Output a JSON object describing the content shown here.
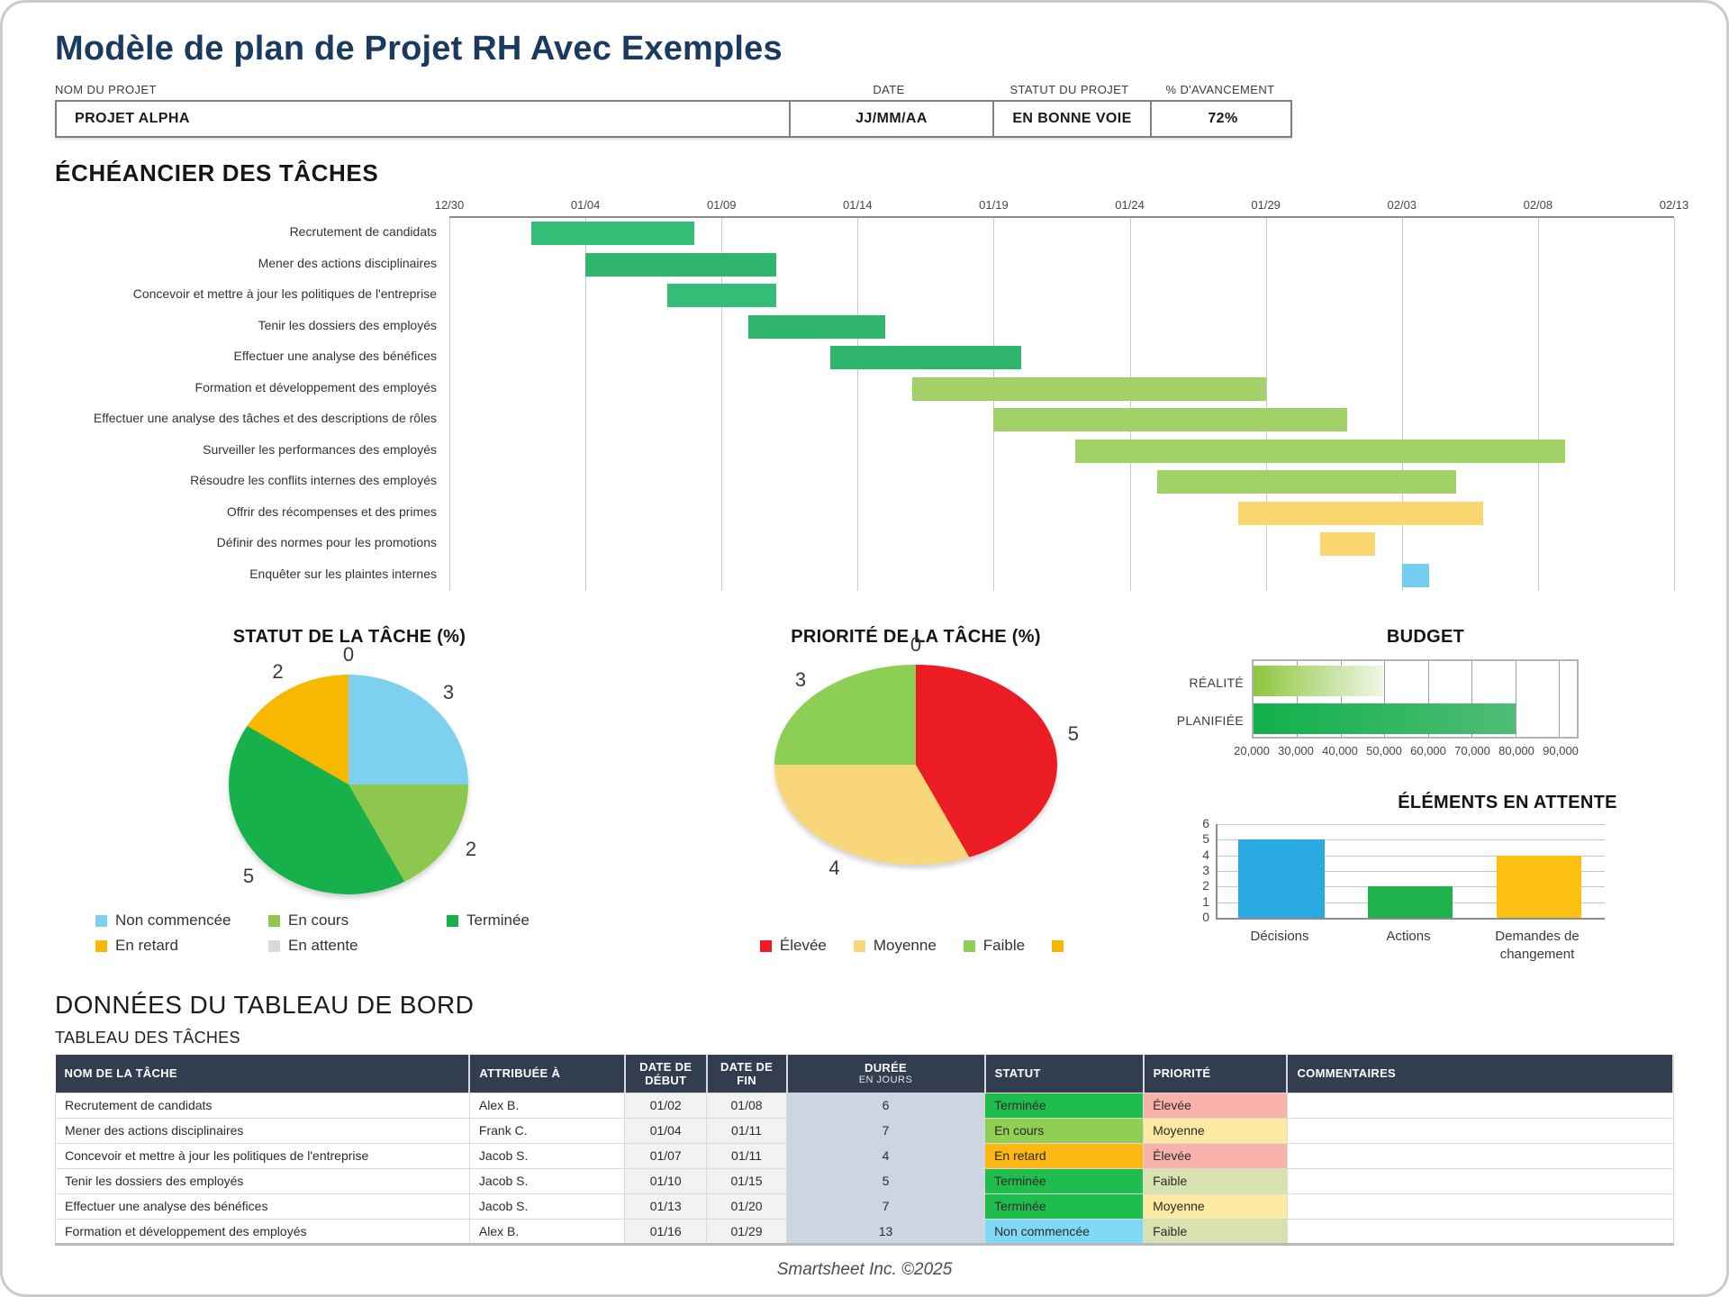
{
  "title": "Modèle de plan de Projet RH Avec Exemples",
  "project_info": {
    "fields": [
      {
        "label": "NOM DU PROJET",
        "value": "PROJET ALPHA"
      },
      {
        "label": "DATE",
        "value": "JJ/MM/AA"
      },
      {
        "label": "STATUT DU PROJET",
        "value": "EN BONNE VOIE"
      },
      {
        "label": "% D'AVANCEMENT",
        "value": "72%"
      }
    ]
  },
  "chart_data": [
    {
      "type": "gantt",
      "title": "ÉCHÉANCIER DES TÂCHES",
      "x_ticks": [
        "12/30",
        "01/04",
        "01/09",
        "01/14",
        "01/19",
        "01/24",
        "01/29",
        "02/03",
        "02/08",
        "02/13"
      ],
      "day_span": 45,
      "tasks": [
        {
          "label": "Recrutement de candidats",
          "start": "01/02",
          "end": "01/08",
          "start_day": 3,
          "end_day": 9,
          "color": "#34bd76"
        },
        {
          "label": "Mener des actions disciplinaires",
          "start": "01/04",
          "end": "01/11",
          "start_day": 5,
          "end_day": 12,
          "color": "#2fb56c"
        },
        {
          "label": "Concevoir et mettre à jour les politiques de l'entreprise",
          "start": "01/07",
          "end": "01/11",
          "start_day": 8,
          "end_day": 12,
          "color": "#34bd76"
        },
        {
          "label": "Tenir les dossiers des employés",
          "start": "01/10",
          "end": "01/15",
          "start_day": 11,
          "end_day": 16,
          "color": "#2fb56c"
        },
        {
          "label": "Effectuer une analyse des bénéfices",
          "start": "01/13",
          "end": "01/20",
          "start_day": 14,
          "end_day": 21,
          "color": "#2fb56c"
        },
        {
          "label": "Formation et développement des employés",
          "start": "01/16",
          "end": "01/29",
          "start_day": 17,
          "end_day": 30,
          "color": "#a2d168"
        },
        {
          "label": "Effectuer une analyse des tâches et des descriptions de rôles",
          "start": "01/19",
          "end": "02/01",
          "start_day": 20,
          "end_day": 33,
          "color": "#a2d168"
        },
        {
          "label": "Surveiller les performances des employés",
          "start": "01/22",
          "end": "02/09",
          "start_day": 23,
          "end_day": 41,
          "color": "#a2d168"
        },
        {
          "label": "Résoudre les conflits internes des employés",
          "start": "01/25",
          "end": "02/05",
          "start_day": 26,
          "end_day": 37,
          "color": "#a2d168"
        },
        {
          "label": "Offrir des récompenses et des primes",
          "start": "01/28",
          "end": "02/06",
          "start_day": 29,
          "end_day": 38,
          "color": "#fbd56f"
        },
        {
          "label": "Définir des normes pour les promotions",
          "start": "01/31",
          "end": "02/02",
          "start_day": 32,
          "end_day": 34,
          "color": "#fbd56f"
        },
        {
          "label": "Enquêter sur les plaintes internes",
          "start": "02/03",
          "end": "02/04",
          "start_day": 35,
          "end_day": 36,
          "color": "#74ccf0"
        }
      ]
    },
    {
      "type": "pie",
      "title": "STATUT DE LA TÂCHE (%)",
      "slices": [
        {
          "label": "Non commencée",
          "value": 3,
          "color": "#7ed1ee"
        },
        {
          "label": "En cours",
          "value": 2,
          "color": "#8dc74e"
        },
        {
          "label": "Terminée",
          "value": 5,
          "color": "#17b14b"
        },
        {
          "label": "En retard",
          "value": 2,
          "color": "#f8b800"
        },
        {
          "label": "En attente",
          "value": 0,
          "color": "#d9d9d9"
        }
      ]
    },
    {
      "type": "pie",
      "title": "PRIORITÉ DE LA TÂCHE (%)",
      "slices": [
        {
          "label": "Élevée",
          "value": 5,
          "color": "#ec1c24"
        },
        {
          "label": "Moyenne",
          "value": 4,
          "color": "#f8d679"
        },
        {
          "label": "Faible",
          "value": 3,
          "color": "#8dce55"
        },
        {
          "label": "",
          "value": 0,
          "color": "#f5b800"
        }
      ]
    },
    {
      "type": "bar",
      "orientation": "horizontal",
      "title": "BUDGET",
      "categories": [
        "RÉALITÉ",
        "PLANIFIÉE"
      ],
      "values": [
        50000,
        80000
      ],
      "bar_gradients": [
        [
          "#8dc63f",
          "#f0f7e6"
        ],
        [
          "#11b04b",
          "#4fbd75"
        ]
      ],
      "axis_min": 20000,
      "axis_max": 90000,
      "x_ticks": [
        "20,000",
        "30,000",
        "40,000",
        "50,000",
        "60,000",
        "70,000",
        "80,000",
        "90,000"
      ]
    },
    {
      "type": "bar",
      "title": "ÉLÉMENTS EN ATTENTE",
      "categories": [
        "Décisions",
        "Actions",
        "Demandes de changement"
      ],
      "values": [
        5,
        2,
        4
      ],
      "colors": [
        "#29abe2",
        "#1fb14c",
        "#fcc013"
      ],
      "y_ticks": [
        6,
        5,
        4,
        3,
        2,
        1,
        0
      ],
      "ylim": [
        0,
        6
      ]
    }
  ],
  "dashboard": {
    "section_title": "DONNÉES DU TABLEAU DE BORD",
    "table_title": "TABLEAU DES TÂCHES",
    "columns": {
      "task": "NOM DE LA TÂCHE",
      "assignee": "ATTRIBUÉE À",
      "start": "DATE DE DÉBUT",
      "end": "DATE DE FIN",
      "duration": "DURÉE",
      "duration_sub": "EN JOURS",
      "status": "STATUT",
      "priority": "PRIORITÉ",
      "comments": "COMMENTAIRES"
    },
    "rows": [
      {
        "task": "Recrutement de candidats",
        "assignee": "Alex B.",
        "start": "01/02",
        "end": "01/08",
        "duration": "6",
        "status": "Terminée",
        "priority": "Élevée",
        "comments": ""
      },
      {
        "task": "Mener des actions disciplinaires",
        "assignee": "Frank C.",
        "start": "01/04",
        "end": "01/11",
        "duration": "7",
        "status": "En cours",
        "priority": "Moyenne",
        "comments": ""
      },
      {
        "task": "Concevoir et mettre à jour les politiques de l'entreprise",
        "assignee": "Jacob S.",
        "start": "01/07",
        "end": "01/11",
        "duration": "4",
        "status": "En retard",
        "priority": "Élevée",
        "comments": ""
      },
      {
        "task": "Tenir les dossiers des employés",
        "assignee": "Jacob S.",
        "start": "01/10",
        "end": "01/15",
        "duration": "5",
        "status": "Terminée",
        "priority": "Faible",
        "comments": ""
      },
      {
        "task": "Effectuer une analyse des bénéfices",
        "assignee": "Jacob S.",
        "start": "01/13",
        "end": "01/20",
        "duration": "7",
        "status": "Terminée",
        "priority": "Moyenne",
        "comments": ""
      },
      {
        "task": "Formation et développement des employés",
        "assignee": "Alex B.",
        "start": "01/16",
        "end": "01/29",
        "duration": "13",
        "status": "Non commencée",
        "priority": "Faible",
        "comments": ""
      }
    ],
    "status_colors": {
      "Terminée": "#1ebd4d",
      "En cours": "#90cf53",
      "En retard": "#fdb713",
      "Non commencée": "#7fd8f4"
    },
    "priority_colors": {
      "Élevée": "#fab3ab",
      "Moyenne": "#fdeaa2",
      "Faible": "#d8e2b0"
    }
  },
  "footer": "Smartsheet Inc. ©2025"
}
